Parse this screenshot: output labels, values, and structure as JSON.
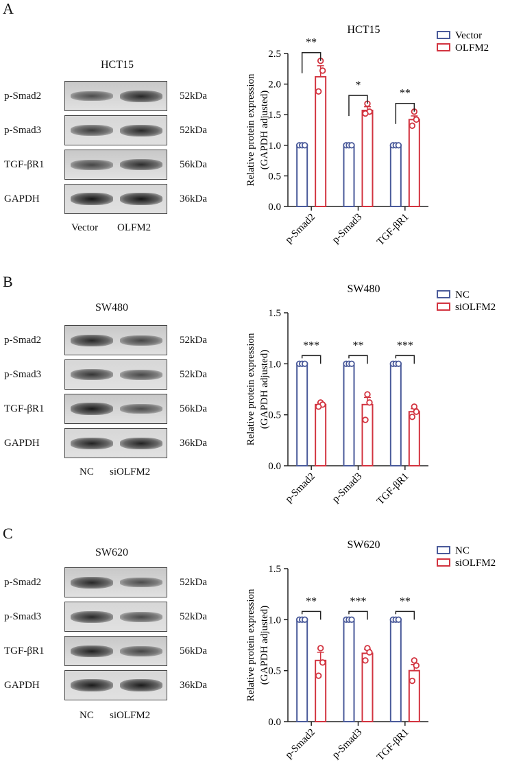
{
  "panels": [
    {
      "letter": "A",
      "cell_line": "HCT15",
      "lanes": [
        "Vector",
        "OLFM2"
      ],
      "rows": [
        {
          "protein": "p-Smad2",
          "kda": "52kDa",
          "band_intensity": [
            0.55,
            0.85
          ]
        },
        {
          "protein": "p-Smad3",
          "kda": "52kDa",
          "band_intensity": [
            0.7,
            0.85
          ]
        },
        {
          "protein": "TGF-βR1",
          "kda": "56kDa",
          "band_intensity": [
            0.6,
            0.8
          ]
        },
        {
          "protein": "GAPDH",
          "kda": "36kDa",
          "band_intensity": [
            1.0,
            1.0
          ]
        }
      ],
      "chart_data": {
        "type": "bar",
        "title": "HCT15",
        "ylabel_line1": "Relative protein expression",
        "ylabel_line2": "(GAPDH adjusted)",
        "ylim": [
          0,
          2.5
        ],
        "yticks": [
          "0.0",
          "0.5",
          "1.0",
          "1.5",
          "2.0",
          "2.5"
        ],
        "categories": [
          "p-Smad2",
          "p-Smad3",
          "TGF-βR1"
        ],
        "legend_position": "top-right",
        "series": [
          {
            "name": "Vector",
            "color": "#4a5a9a",
            "values": [
              1.0,
              1.0,
              1.0
            ],
            "errors": [
              0,
              0,
              0
            ],
            "points": [
              [
                1.0,
                1.0,
                1.0
              ],
              [
                1.0,
                1.0,
                1.0
              ],
              [
                1.0,
                1.0,
                1.0
              ]
            ]
          },
          {
            "name": "OLFM2",
            "color": "#d2333f",
            "values": [
              2.12,
              1.57,
              1.42
            ],
            "errors": [
              0.18,
              0.06,
              0.06
            ],
            "points": [
              [
                2.38,
                2.22,
                1.88
              ],
              [
                1.68,
                1.55,
                1.52
              ],
              [
                1.55,
                1.42,
                1.32
              ]
            ]
          }
        ],
        "significance": [
          "**",
          "*",
          "**"
        ]
      }
    },
    {
      "letter": "B",
      "cell_line": "SW480",
      "lanes": [
        "NC",
        "siOLFM2"
      ],
      "rows": [
        {
          "protein": "p-Smad2",
          "kda": "52kDa",
          "band_intensity": [
            0.85,
            0.6
          ]
        },
        {
          "protein": "p-Smad3",
          "kda": "52kDa",
          "band_intensity": [
            0.75,
            0.6
          ]
        },
        {
          "protein": "TGF-βR1",
          "kda": "56kDa",
          "band_intensity": [
            0.95,
            0.55
          ]
        },
        {
          "protein": "GAPDH",
          "kda": "36kDa",
          "band_intensity": [
            0.9,
            0.9
          ]
        }
      ],
      "chart_data": {
        "type": "bar",
        "title": "SW480",
        "ylabel_line1": "Relative protein expression",
        "ylabel_line2": "(GAPDH adjusted)",
        "ylim": [
          0,
          1.5
        ],
        "yticks": [
          "0.0",
          "0.5",
          "1.0",
          "1.5"
        ],
        "categories": [
          "p-Smad2",
          "p-Smad3",
          "TGF-βR1"
        ],
        "legend_position": "top-right",
        "series": [
          {
            "name": "NC",
            "color": "#4a5a9a",
            "values": [
              1.0,
              1.0,
              1.0
            ],
            "errors": [
              0,
              0,
              0
            ],
            "points": [
              [
                1.0,
                1.0,
                1.0
              ],
              [
                1.0,
                1.0,
                1.0
              ],
              [
                1.0,
                1.0,
                1.0
              ]
            ]
          },
          {
            "name": "siOLFM2",
            "color": "#d2333f",
            "values": [
              0.6,
              0.6,
              0.53
            ],
            "errors": [
              0.02,
              0.07,
              0.03
            ],
            "points": [
              [
                0.62,
                0.6,
                0.58
              ],
              [
                0.7,
                0.62,
                0.45
              ],
              [
                0.58,
                0.53,
                0.48
              ]
            ]
          }
        ],
        "significance": [
          "***",
          "**",
          "***"
        ]
      }
    },
    {
      "letter": "C",
      "cell_line": "SW620",
      "lanes": [
        "NC",
        "siOLFM2"
      ],
      "rows": [
        {
          "protein": "p-Smad2",
          "kda": "52kDa",
          "band_intensity": [
            0.85,
            0.55
          ]
        },
        {
          "protein": "p-Smad3",
          "kda": "52kDa",
          "band_intensity": [
            0.85,
            0.6
          ]
        },
        {
          "protein": "TGF-βR1",
          "kda": "56kDa",
          "band_intensity": [
            0.9,
            0.6
          ]
        },
        {
          "protein": "GAPDH",
          "kda": "36kDa",
          "band_intensity": [
            0.95,
            0.95
          ]
        }
      ],
      "chart_data": {
        "type": "bar",
        "title": "SW620",
        "ylabel_line1": "Relative protein expression",
        "ylabel_line2": "(GAPDH adjusted)",
        "ylim": [
          0,
          1.5
        ],
        "yticks": [
          "0.0",
          "0.5",
          "1.0",
          "1.5"
        ],
        "categories": [
          "p-Smad2",
          "p-Smad3",
          "TGF-βR1"
        ],
        "legend_position": "top-right",
        "series": [
          {
            "name": "NC",
            "color": "#4a5a9a",
            "values": [
              1.0,
              1.0,
              1.0
            ],
            "errors": [
              0,
              0,
              0
            ],
            "points": [
              [
                1.0,
                1.0,
                1.0
              ],
              [
                1.0,
                1.0,
                1.0
              ],
              [
                1.0,
                1.0,
                1.0
              ]
            ]
          },
          {
            "name": "siOLFM2",
            "color": "#d2333f",
            "values": [
              0.6,
              0.67,
              0.5
            ],
            "errors": [
              0.08,
              0.04,
              0.06
            ],
            "points": [
              [
                0.72,
                0.58,
                0.45
              ],
              [
                0.72,
                0.68,
                0.6
              ],
              [
                0.6,
                0.55,
                0.4
              ]
            ]
          }
        ],
        "significance": [
          "**",
          "***",
          "**"
        ]
      }
    }
  ]
}
